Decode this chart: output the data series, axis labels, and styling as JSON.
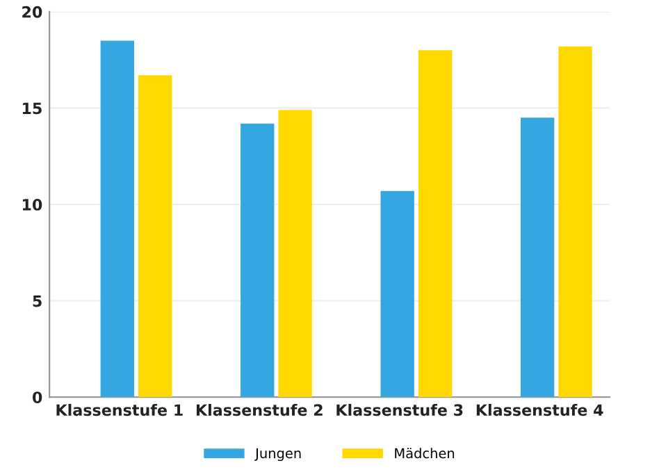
{
  "chart_data": {
    "type": "bar",
    "categories": [
      "Klassenstufe 1",
      "Klassenstufe 2",
      "Klassenstufe 3",
      "Klassenstufe 4"
    ],
    "series": [
      {
        "name": "Jungen",
        "color": "#35a7e0",
        "values": [
          18.5,
          14.2,
          10.7,
          14.5
        ]
      },
      {
        "name": "Mädchen",
        "color": "#ffd800",
        "values": [
          16.7,
          14.9,
          18.0,
          18.2
        ]
      }
    ],
    "ylim": [
      0,
      20
    ],
    "yticks": [
      0,
      5,
      10,
      15,
      20
    ],
    "grid": "y",
    "legend": "bottom"
  }
}
